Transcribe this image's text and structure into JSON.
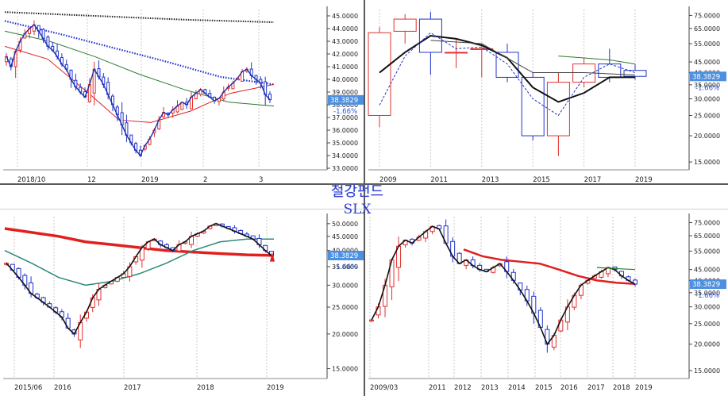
{
  "title": "철강펀드",
  "ticker": "SLX",
  "last_price": "38.3829",
  "change_pct": "-1.66%",
  "colors": {
    "up": "#e0302e",
    "down": "#2233cc",
    "ma_red": "#e02020",
    "ma_green": "#2d7a2d",
    "ma_teal": "#2a8a7a",
    "dots_blue": "#1a2fd0",
    "dots_black": "#222222",
    "badge": "#4d8fe0"
  },
  "chart_data": [
    {
      "panel": "daily",
      "type": "candlestick",
      "x_labels": [
        "2018/10",
        "12",
        "2019",
        "2",
        "3"
      ],
      "y_ticks": [
        "45.0000",
        "44.0000",
        "43.0000",
        "42.0000",
        "41.0000",
        "40.0000",
        "39.0000",
        "38.0000",
        "37.0000",
        "36.0000",
        "35.0000",
        "34.0000",
        "33.0000"
      ],
      "ylim": [
        33,
        45.5
      ],
      "close": [
        41.8,
        41.0,
        42.2,
        43.0,
        43.6,
        44.0,
        44.3,
        43.8,
        43.2,
        42.6,
        42.3,
        41.8,
        41.2,
        40.8,
        40.0,
        39.4,
        39.0,
        38.6,
        39.6,
        40.8,
        40.2,
        39.6,
        38.8,
        38.0,
        37.2,
        36.4,
        35.6,
        35.0,
        34.4,
        34.0,
        34.8,
        35.3,
        36.0,
        36.8,
        37.4,
        37.2,
        37.6,
        37.9,
        38.2,
        38.0,
        38.6,
        38.9,
        39.2,
        38.9,
        38.6,
        38.3,
        38.5,
        39.0,
        39.4,
        39.7,
        40.1,
        40.6,
        40.8,
        40.3,
        40.0,
        39.7,
        38.8,
        38.4
      ],
      "ma_short_color": "blue line",
      "ma_series": [
        {
          "name": "MA-dotted-black",
          "values": [
            45.3,
            45.0,
            44.7,
            44.5
          ]
        },
        {
          "name": "MA-dotted-blue",
          "values": [
            44.6,
            43.6,
            42.5,
            41.4,
            40.2,
            39.6
          ]
        },
        {
          "name": "MA-green",
          "values": [
            43.8,
            43.0,
            41.8,
            40.4,
            39.2,
            38.2,
            37.9
          ]
        },
        {
          "name": "MA-red",
          "values": [
            42.6,
            41.2,
            39.4,
            37.2,
            36.6,
            37.6,
            38.8,
            39.6
          ]
        }
      ]
    },
    {
      "panel": "yearly",
      "type": "candlestick",
      "categories": [
        "2009",
        "2010",
        "2011",
        "2012",
        "2013",
        "2014",
        "2015",
        "2016",
        "2017",
        "2018",
        "2019"
      ],
      "x_labels": [
        "2009",
        "2011",
        "2013",
        "2015",
        "2017",
        "2019"
      ],
      "y_ticks": [
        "75.0000",
        "65.0000",
        "55.0000",
        "45.0000",
        "40.0000",
        "35.0000",
        "30.0000",
        "25.0000",
        "20.0000",
        "15.0000"
      ],
      "ylim": [
        14,
        80
      ],
      "open": [
        25,
        63,
        72,
        50,
        52,
        50,
        38,
        20,
        36,
        44,
        41
      ],
      "close": [
        62,
        72,
        50,
        50,
        52,
        38,
        20,
        36,
        44,
        38,
        38.4
      ],
      "high": [
        66,
        76,
        78,
        58,
        55,
        55,
        40,
        40,
        47,
        52,
        44
      ],
      "low": [
        22,
        55,
        39,
        42,
        38,
        36,
        19,
        16,
        34,
        36,
        37
      ]
    },
    {
      "panel": "weekly",
      "type": "candlestick",
      "x_labels": [
        "2015/06",
        "2016",
        "2017",
        "2018",
        "2019"
      ],
      "y_ticks": [
        "50.0000",
        "45.0000",
        "40.0000",
        "35.0000",
        "30.0000",
        "25.0000",
        "20.0000",
        "15.0000"
      ],
      "ylim": [
        14,
        53
      ],
      "close": [
        36,
        34,
        32,
        30,
        28,
        27,
        26,
        25,
        24,
        23,
        21,
        20,
        22,
        24,
        27,
        29,
        30,
        31,
        32,
        33,
        35,
        38,
        41,
        43,
        44,
        42,
        41,
        40,
        42,
        43,
        45,
        46,
        47,
        49,
        50,
        49,
        48,
        47,
        46,
        45,
        44,
        42,
        40,
        38.4
      ],
      "ma_series": [
        {
          "name": "MA-red",
          "values": [
            48,
            46.5,
            45,
            43,
            42,
            41,
            40,
            39.5,
            39,
            38.6,
            38.4
          ]
        },
        {
          "name": "MA-teal",
          "values": [
            40,
            36,
            32,
            30,
            31,
            33,
            36,
            40,
            43,
            44,
            44
          ]
        }
      ]
    },
    {
      "panel": "monthly",
      "type": "candlestick",
      "x_labels": [
        "2009/03",
        "2011",
        "2012",
        "2013",
        "2014",
        "2015",
        "2016",
        "2017",
        "2018",
        "2019"
      ],
      "y_ticks": [
        "75.0000",
        "65.0000",
        "55.0000",
        "45.0000",
        "40.0000",
        "35.0000",
        "30.0000",
        "25.0000",
        "20.0000",
        "15.0000"
      ],
      "ylim": [
        14,
        80
      ],
      "close": [
        26,
        30,
        38,
        50,
        58,
        62,
        60,
        64,
        68,
        72,
        70,
        60,
        52,
        48,
        50,
        47,
        45,
        44,
        46,
        48,
        44,
        40,
        36,
        32,
        28,
        24,
        20,
        22,
        26,
        30,
        34,
        38,
        40,
        42,
        44,
        46,
        45,
        42,
        40,
        38.4
      ],
      "ma_series": [
        {
          "name": "MA-red",
          "values": [
            56,
            52,
            50,
            49,
            48,
            45,
            42,
            40,
            39,
            38.5
          ]
        }
      ]
    }
  ]
}
